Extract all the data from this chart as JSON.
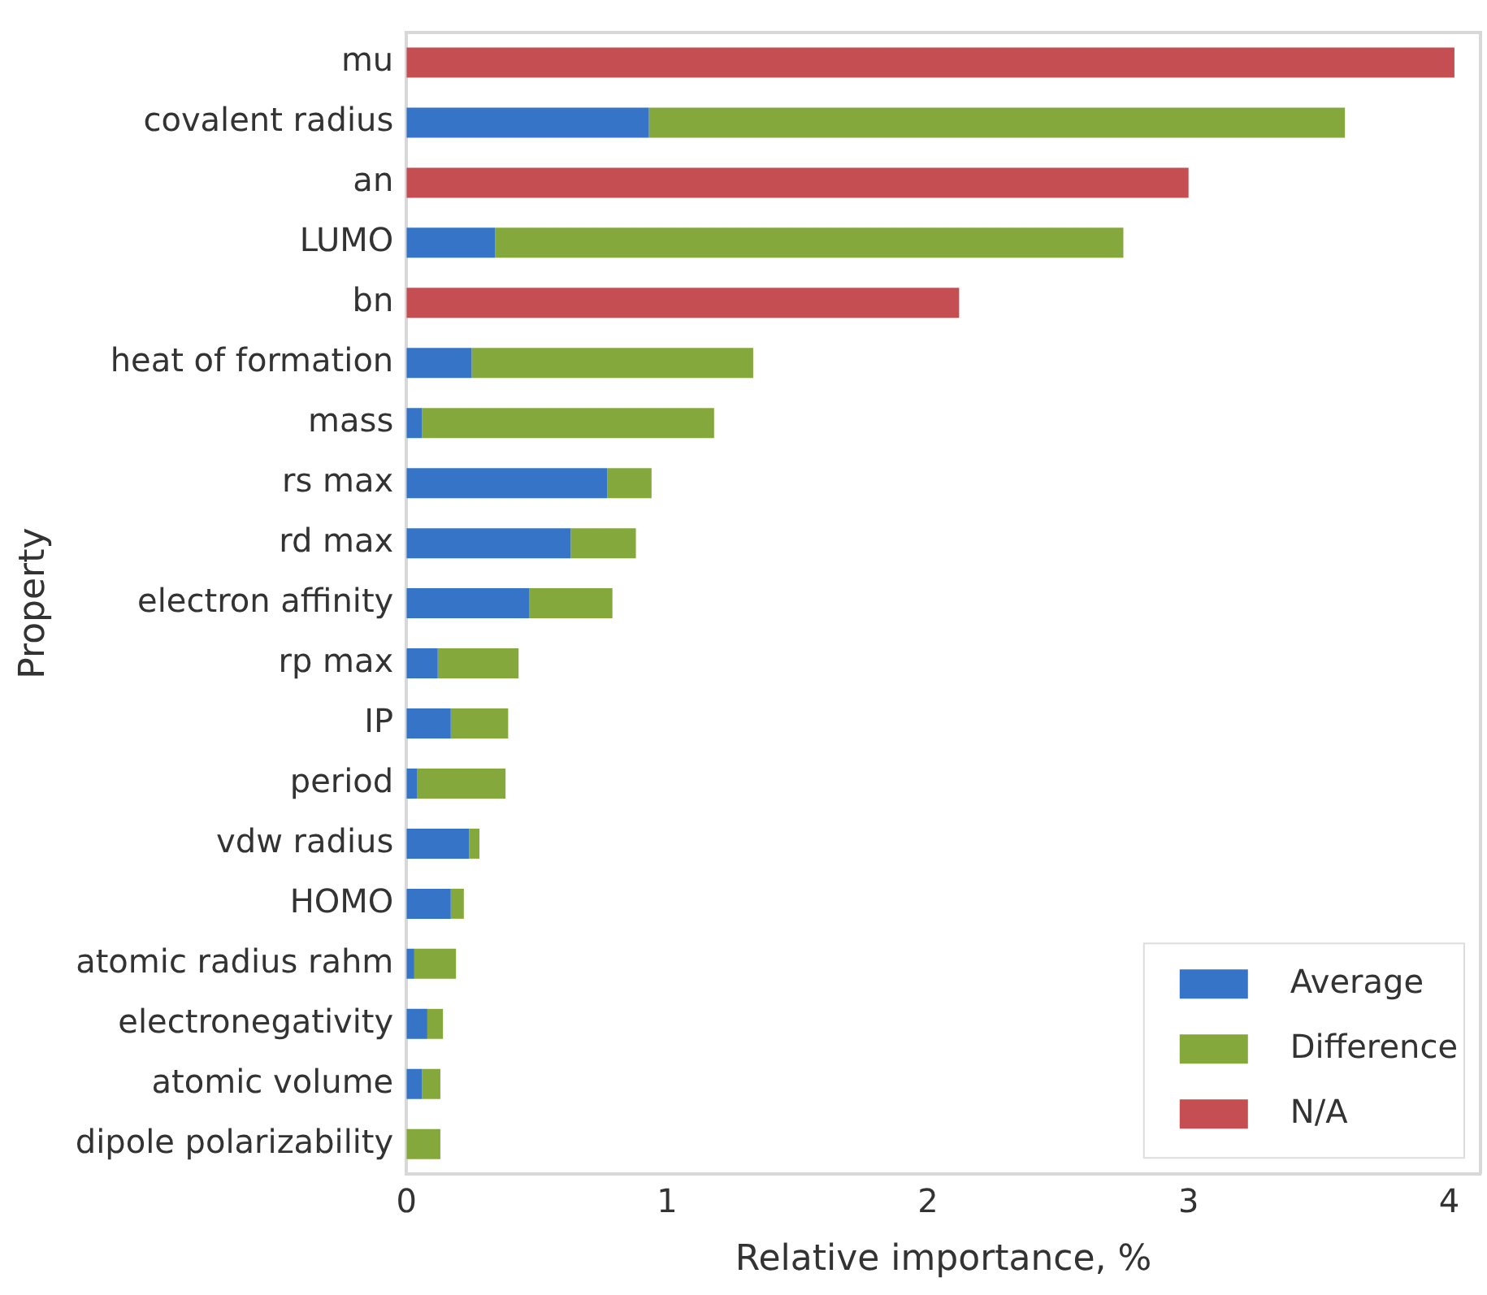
{
  "chart_data": {
    "type": "bar",
    "orientation": "horizontal",
    "stacked": true,
    "xlabel": "Relative importance, %",
    "ylabel": "Property",
    "categories": [
      "mu",
      "covalent radius",
      "an",
      "LUMO",
      "bn",
      "heat of formation",
      "mass",
      "rs max",
      "rd max",
      "electron affinity",
      "rp max",
      "IP",
      "period",
      "vdw radius",
      "HOMO",
      "atomic radius rahm",
      "electronegativity",
      "atomic volume",
      "dipole polarizability"
    ],
    "series": [
      {
        "name": "Average",
        "color": "#3674c8",
        "values": [
          null,
          0.93,
          null,
          0.34,
          null,
          0.25,
          0.06,
          0.77,
          0.63,
          0.47,
          0.12,
          0.17,
          0.04,
          0.24,
          0.17,
          0.03,
          0.08,
          0.06,
          null
        ]
      },
      {
        "name": "Difference",
        "color": "#84a83c",
        "values": [
          null,
          2.67,
          null,
          2.41,
          null,
          1.08,
          1.12,
          0.17,
          0.25,
          0.32,
          0.31,
          0.22,
          0.34,
          0.04,
          0.05,
          0.16,
          0.06,
          0.07,
          0.13
        ]
      },
      {
        "name": "N/A",
        "color": "#c44e52",
        "values": [
          4.02,
          null,
          3.0,
          null,
          2.12,
          null,
          null,
          null,
          null,
          null,
          null,
          null,
          null,
          null,
          null,
          null,
          null,
          null,
          null
        ]
      }
    ],
    "xlim": [
      0,
      4.12
    ],
    "xticks": [
      0,
      1,
      2,
      3,
      4
    ],
    "grid": false,
    "legend": "bottom right"
  }
}
